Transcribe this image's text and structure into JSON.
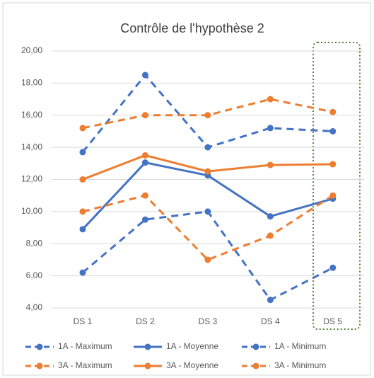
{
  "chart_data": {
    "type": "line",
    "title": "Contrôle de l'hypothèse 2",
    "categories": [
      "DS 1",
      "DS 2",
      "DS 3",
      "DS 4",
      "DS 5"
    ],
    "series": [
      {
        "name": "1A - Maximum",
        "color": "#4472c4",
        "dash": true,
        "values": [
          13.7,
          18.5,
          14.0,
          15.2,
          15.0
        ]
      },
      {
        "name": "1A - Moyenne",
        "color": "#4472c4",
        "dash": false,
        "values": [
          8.9,
          13.05,
          12.25,
          9.7,
          10.8
        ]
      },
      {
        "name": "1A - Minimum",
        "color": "#4472c4",
        "dash": true,
        "values": [
          6.2,
          9.5,
          10.0,
          4.5,
          6.5
        ]
      },
      {
        "name": "3A - Maximum",
        "color": "#ed7d31",
        "dash": true,
        "values": [
          15.2,
          16.0,
          16.0,
          17.0,
          16.2
        ]
      },
      {
        "name": "3A - Moyenne",
        "color": "#ed7d31",
        "dash": false,
        "values": [
          12.0,
          13.5,
          12.5,
          12.9,
          12.95
        ]
      },
      {
        "name": "3A - Minimum",
        "color": "#ed7d31",
        "dash": true,
        "values": [
          10.0,
          11.0,
          7.0,
          8.5,
          11.0
        ]
      }
    ],
    "ylim": [
      4,
      20
    ],
    "yticks": [
      {
        "value": 4,
        "label": "4,00"
      },
      {
        "value": 6,
        "label": "6,00"
      },
      {
        "value": 8,
        "label": "8,00"
      },
      {
        "value": 10,
        "label": "10,00"
      },
      {
        "value": 12,
        "label": "12,00"
      },
      {
        "value": 14,
        "label": "14,00"
      },
      {
        "value": 16,
        "label": "16,00"
      },
      {
        "value": 18,
        "label": "18,00"
      },
      {
        "value": 20,
        "label": "20,00"
      }
    ],
    "grid": true,
    "legend": "bottom"
  }
}
